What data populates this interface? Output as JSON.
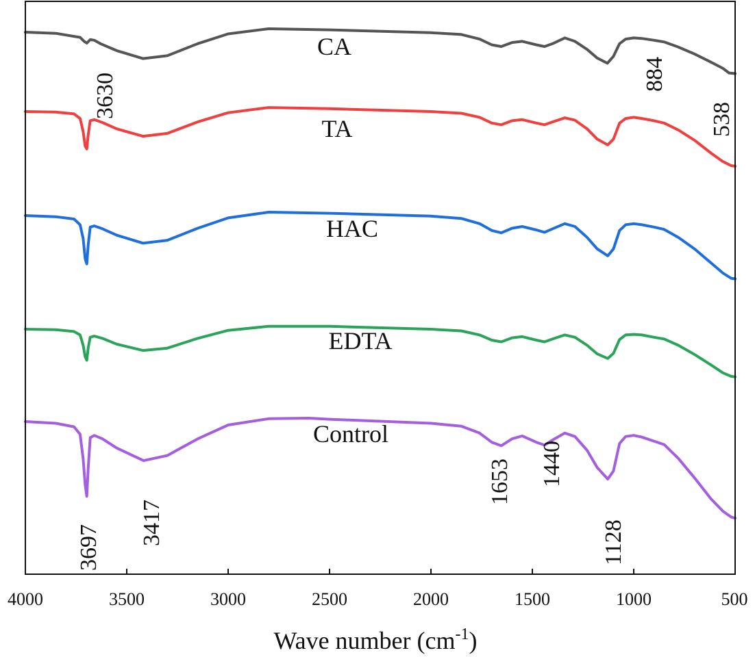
{
  "chart_data": {
    "type": "line",
    "xlabel": "Wave number (cm",
    "xlabel_sup": "-1",
    "xlabel_close": ")",
    "xlim": [
      4000,
      500
    ],
    "x_ticks": [
      "4000",
      "3500",
      "3000",
      "2500",
      "2000",
      "1500",
      "1000",
      "500"
    ],
    "grid": false,
    "legend": "inline labels above each curve",
    "series": [
      {
        "name": "CA",
        "color": "#555555",
        "points": [
          [
            4000,
            0.0
          ],
          [
            3850,
            0.2
          ],
          [
            3730,
            0.9
          ],
          [
            3710,
            1.6
          ],
          [
            3697,
            1.9
          ],
          [
            3680,
            1.3
          ],
          [
            3660,
            1.4
          ],
          [
            3630,
            2.0
          ],
          [
            3550,
            3.2
          ],
          [
            3420,
            4.6
          ],
          [
            3300,
            4.1
          ],
          [
            3150,
            2.0
          ],
          [
            3000,
            0.3
          ],
          [
            2800,
            -0.6
          ],
          [
            2500,
            -0.4
          ],
          [
            2000,
            0.1
          ],
          [
            1850,
            0.4
          ],
          [
            1760,
            1.2
          ],
          [
            1700,
            2.2
          ],
          [
            1653,
            2.5
          ],
          [
            1600,
            1.8
          ],
          [
            1550,
            1.6
          ],
          [
            1480,
            2.2
          ],
          [
            1440,
            2.5
          ],
          [
            1400,
            2.0
          ],
          [
            1340,
            1.0
          ],
          [
            1290,
            1.6
          ],
          [
            1230,
            3.0
          ],
          [
            1180,
            4.5
          ],
          [
            1130,
            5.4
          ],
          [
            1100,
            4.2
          ],
          [
            1070,
            2.0
          ],
          [
            1040,
            1.2
          ],
          [
            1000,
            1.0
          ],
          [
            960,
            1.1
          ],
          [
            900,
            1.4
          ],
          [
            884,
            1.5
          ],
          [
            850,
            1.7
          ],
          [
            780,
            2.6
          ],
          [
            700,
            3.8
          ],
          [
            620,
            5.2
          ],
          [
            560,
            6.3
          ],
          [
            530,
            7.1
          ],
          [
            500,
            7.2
          ]
        ]
      },
      {
        "name": "TA",
        "color": "#ef4040",
        "points": [
          [
            4000,
            0.0
          ],
          [
            3850,
            0.1
          ],
          [
            3760,
            0.4
          ],
          [
            3730,
            1.2
          ],
          [
            3715,
            3.5
          ],
          [
            3705,
            6.0
          ],
          [
            3697,
            6.5
          ],
          [
            3690,
            4.0
          ],
          [
            3680,
            1.6
          ],
          [
            3660,
            1.4
          ],
          [
            3620,
            1.9
          ],
          [
            3550,
            3.0
          ],
          [
            3420,
            4.3
          ],
          [
            3300,
            3.8
          ],
          [
            3150,
            1.8
          ],
          [
            3000,
            0.2
          ],
          [
            2800,
            -0.7
          ],
          [
            2500,
            -0.5
          ],
          [
            2000,
            0.0
          ],
          [
            1850,
            0.3
          ],
          [
            1760,
            1.0
          ],
          [
            1700,
            2.0
          ],
          [
            1653,
            2.3
          ],
          [
            1600,
            1.6
          ],
          [
            1550,
            1.4
          ],
          [
            1480,
            2.0
          ],
          [
            1440,
            2.3
          ],
          [
            1400,
            1.8
          ],
          [
            1340,
            1.1
          ],
          [
            1290,
            1.5
          ],
          [
            1230,
            3.0
          ],
          [
            1180,
            4.8
          ],
          [
            1128,
            5.8
          ],
          [
            1100,
            4.8
          ],
          [
            1070,
            2.0
          ],
          [
            1040,
            1.2
          ],
          [
            1000,
            1.0
          ],
          [
            960,
            1.2
          ],
          [
            900,
            1.6
          ],
          [
            850,
            2.0
          ],
          [
            780,
            3.2
          ],
          [
            700,
            5.0
          ],
          [
            620,
            7.2
          ],
          [
            560,
            8.7
          ],
          [
            520,
            9.4
          ],
          [
            500,
            9.5
          ]
        ]
      },
      {
        "name": "HAC",
        "color": "#1e6fdc",
        "points": [
          [
            4000,
            0.0
          ],
          [
            3850,
            0.2
          ],
          [
            3760,
            0.6
          ],
          [
            3730,
            1.6
          ],
          [
            3715,
            4.0
          ],
          [
            3705,
            7.5
          ],
          [
            3697,
            8.4
          ],
          [
            3690,
            5.0
          ],
          [
            3680,
            2.0
          ],
          [
            3660,
            1.8
          ],
          [
            3620,
            2.3
          ],
          [
            3550,
            3.4
          ],
          [
            3420,
            4.8
          ],
          [
            3300,
            4.3
          ],
          [
            3150,
            2.2
          ],
          [
            3000,
            0.4
          ],
          [
            2800,
            -0.6
          ],
          [
            2500,
            -0.4
          ],
          [
            2000,
            0.1
          ],
          [
            1850,
            0.5
          ],
          [
            1760,
            1.4
          ],
          [
            1700,
            2.6
          ],
          [
            1653,
            3.0
          ],
          [
            1600,
            2.2
          ],
          [
            1550,
            1.9
          ],
          [
            1480,
            2.5
          ],
          [
            1440,
            2.9
          ],
          [
            1400,
            2.3
          ],
          [
            1340,
            1.4
          ],
          [
            1290,
            1.9
          ],
          [
            1230,
            3.8
          ],
          [
            1180,
            5.8
          ],
          [
            1128,
            7.0
          ],
          [
            1100,
            5.8
          ],
          [
            1070,
            2.6
          ],
          [
            1040,
            1.6
          ],
          [
            1000,
            1.4
          ],
          [
            960,
            1.6
          ],
          [
            900,
            2.0
          ],
          [
            850,
            2.4
          ],
          [
            780,
            3.8
          ],
          [
            700,
            5.8
          ],
          [
            620,
            8.2
          ],
          [
            560,
            10.0
          ],
          [
            520,
            10.9
          ],
          [
            500,
            11.0
          ]
        ]
      },
      {
        "name": "EDTA",
        "color": "#2ba35a",
        "points": [
          [
            4000,
            0.0
          ],
          [
            3850,
            0.1
          ],
          [
            3760,
            0.4
          ],
          [
            3730,
            1.0
          ],
          [
            3715,
            2.8
          ],
          [
            3705,
            4.8
          ],
          [
            3697,
            5.4
          ],
          [
            3690,
            3.2
          ],
          [
            3680,
            1.4
          ],
          [
            3660,
            1.2
          ],
          [
            3620,
            1.6
          ],
          [
            3550,
            2.6
          ],
          [
            3420,
            3.7
          ],
          [
            3300,
            3.3
          ],
          [
            3150,
            1.6
          ],
          [
            3000,
            0.2
          ],
          [
            2800,
            -0.5
          ],
          [
            2500,
            -0.5
          ],
          [
            2000,
            0.0
          ],
          [
            1850,
            0.3
          ],
          [
            1760,
            1.0
          ],
          [
            1700,
            1.9
          ],
          [
            1653,
            2.2
          ],
          [
            1600,
            1.5
          ],
          [
            1550,
            1.3
          ],
          [
            1480,
            1.9
          ],
          [
            1440,
            2.2
          ],
          [
            1400,
            1.7
          ],
          [
            1340,
            1.0
          ],
          [
            1290,
            1.4
          ],
          [
            1230,
            2.8
          ],
          [
            1180,
            4.3
          ],
          [
            1128,
            5.1
          ],
          [
            1100,
            4.2
          ],
          [
            1070,
            1.8
          ],
          [
            1040,
            1.0
          ],
          [
            1000,
            0.9
          ],
          [
            960,
            1.0
          ],
          [
            900,
            1.4
          ],
          [
            850,
            1.7
          ],
          [
            780,
            2.8
          ],
          [
            700,
            4.4
          ],
          [
            620,
            6.2
          ],
          [
            560,
            7.6
          ],
          [
            520,
            8.2
          ],
          [
            500,
            8.3
          ]
        ]
      },
      {
        "name": "Control",
        "color": "#a45fde",
        "points": [
          [
            4000,
            0.0
          ],
          [
            3850,
            0.3
          ],
          [
            3760,
            0.9
          ],
          [
            3730,
            2.2
          ],
          [
            3715,
            6.5
          ],
          [
            3705,
            11.0
          ],
          [
            3697,
            13.0
          ],
          [
            3690,
            8.0
          ],
          [
            3680,
            2.8
          ],
          [
            3660,
            2.4
          ],
          [
            3620,
            3.0
          ],
          [
            3550,
            4.6
          ],
          [
            3417,
            6.8
          ],
          [
            3300,
            5.9
          ],
          [
            3150,
            3.0
          ],
          [
            3000,
            0.6
          ],
          [
            2800,
            -0.5
          ],
          [
            2600,
            -0.6
          ],
          [
            2500,
            -0.4
          ],
          [
            2000,
            0.3
          ],
          [
            1850,
            0.8
          ],
          [
            1760,
            2.0
          ],
          [
            1700,
            3.6
          ],
          [
            1653,
            4.2
          ],
          [
            1600,
            3.0
          ],
          [
            1550,
            2.5
          ],
          [
            1480,
            3.6
          ],
          [
            1440,
            4.1
          ],
          [
            1400,
            3.2
          ],
          [
            1340,
            2.0
          ],
          [
            1290,
            2.6
          ],
          [
            1230,
            5.0
          ],
          [
            1180,
            8.0
          ],
          [
            1128,
            10.0
          ],
          [
            1100,
            8.6
          ],
          [
            1070,
            3.8
          ],
          [
            1040,
            2.6
          ],
          [
            1000,
            2.4
          ],
          [
            960,
            2.7
          ],
          [
            900,
            3.4
          ],
          [
            850,
            4.0
          ],
          [
            780,
            6.4
          ],
          [
            700,
            9.8
          ],
          [
            620,
            13.4
          ],
          [
            560,
            15.6
          ],
          [
            520,
            16.6
          ],
          [
            500,
            16.8
          ]
        ]
      }
    ],
    "annotations": [
      "3630",
      "884",
      "538",
      "3697",
      "3417",
      "1653",
      "1440",
      "1128"
    ]
  }
}
